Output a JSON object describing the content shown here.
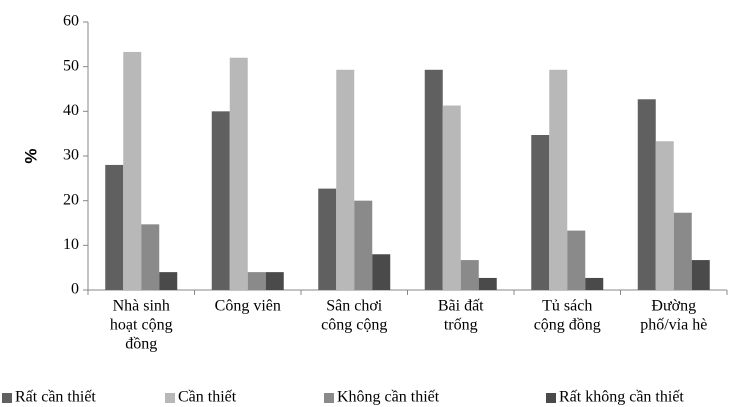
{
  "chart_data": {
    "type": "bar",
    "ylabel": "%",
    "categories": [
      [
        "Nhà sinh",
        "hoạt cộng",
        "đồng"
      ],
      [
        "Công viên"
      ],
      [
        "Sân chơi",
        "công cộng"
      ],
      [
        "Bãi đất",
        "trống"
      ],
      [
        "Tủ sách",
        "cộng đồng"
      ],
      [
        "Đường",
        "phố/vỉa hè"
      ]
    ],
    "series": [
      {
        "name": "Rất cần thiết",
        "color": "#606060",
        "values": [
          28,
          40,
          22.7,
          49.3,
          34.7,
          42.7
        ]
      },
      {
        "name": "Cần thiết",
        "color": "#b8b8b8",
        "values": [
          53.3,
          52,
          49.3,
          41.3,
          49.3,
          33.3
        ]
      },
      {
        "name": "Không cần thiết",
        "color": "#8a8a8a",
        "values": [
          14.7,
          4,
          20,
          6.7,
          13.3,
          17.3
        ]
      },
      {
        "name": "Rất không cần thiết",
        "color": "#4a4a4a",
        "values": [
          4,
          4,
          8,
          2.7,
          2.7,
          6.7
        ]
      }
    ],
    "ylim": [
      0,
      60
    ],
    "yticks": [
      0,
      10,
      20,
      30,
      40,
      50,
      60
    ],
    "legend": "bottom"
  }
}
